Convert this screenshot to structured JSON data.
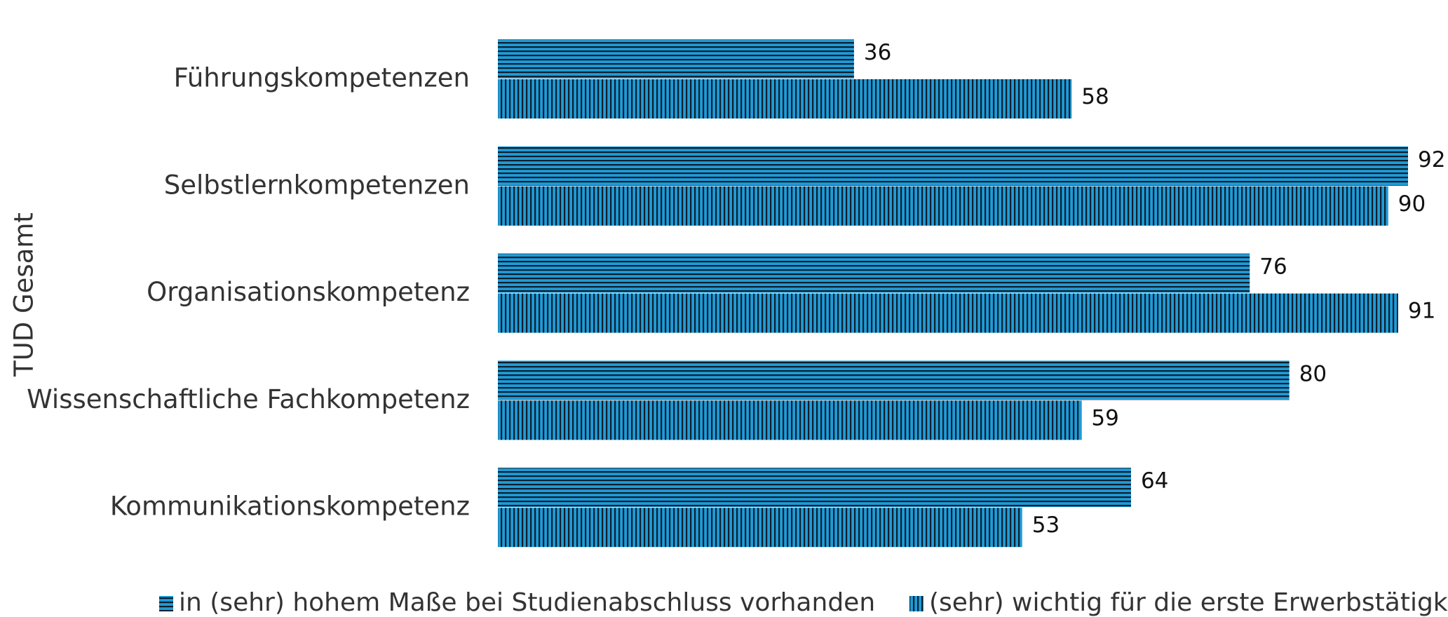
{
  "chart_data": {
    "type": "bar",
    "orientation": "horizontal",
    "y_label": "TUD Gesamt",
    "categories": [
      "Führungskompetenzen",
      "Selbstlernkompetenzen",
      "Organisationskompetenz",
      "Wissenschaftliche Fachkompetenz",
      "Kommunikationskompetenz"
    ],
    "series": [
      {
        "name": "in (sehr) hohem Maße bei Studienabschluss vorhanden",
        "color": "#1f9bd7",
        "pattern": "horizontal",
        "values": [
          36,
          92,
          76,
          80,
          64
        ]
      },
      {
        "name": "(sehr) wichtig für die erste Erwerbstätigkeit",
        "color": "#1f9bd7",
        "pattern": "vertical",
        "values": [
          58,
          90,
          91,
          59,
          53
        ]
      }
    ]
  }
}
